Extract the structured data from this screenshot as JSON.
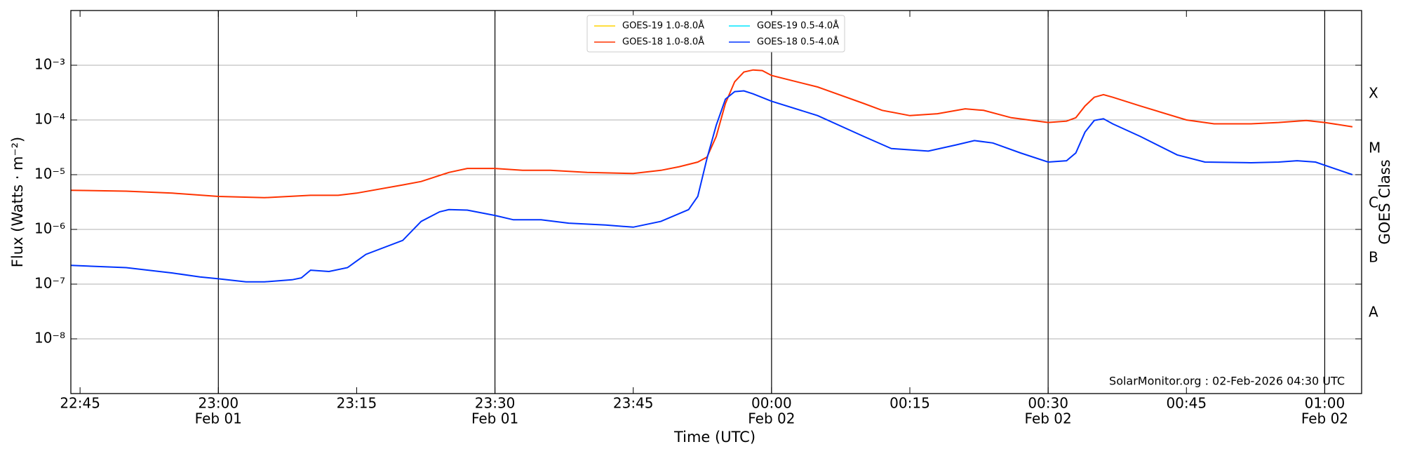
{
  "chart_data": {
    "type": "line",
    "ylabel": "Flux (Watts · m⁻²)",
    "xlabel": "Time (UTC)",
    "y2label": "GOES Class",
    "annotation": "SolarMonitor.org : 02-Feb-2026 04:30 UTC",
    "log_y": true,
    "grid": true,
    "legend": "top-center",
    "ylim": [
      1e-09,
      0.01
    ],
    "yticks": [
      {
        "value": 0.001,
        "label": "10⁻³"
      },
      {
        "value": 0.0001,
        "label": "10⁻⁴"
      },
      {
        "value": 1e-05,
        "label": "10⁻⁵"
      },
      {
        "value": 1e-06,
        "label": "10⁻⁶"
      },
      {
        "value": 1e-07,
        "label": "10⁻⁷"
      },
      {
        "value": 1e-08,
        "label": "10⁻⁸"
      }
    ],
    "y2lim": [
      1e-09,
      0.01
    ],
    "y2ticks": [
      {
        "value": 0.0003,
        "label": "X"
      },
      {
        "value": 3e-05,
        "label": "M"
      },
      {
        "value": 3e-06,
        "label": "C"
      },
      {
        "value": 3e-07,
        "label": "B"
      },
      {
        "value": 3e-08,
        "label": "A"
      }
    ],
    "xlim": [
      "22:44",
      "01:04"
    ],
    "xticks": [
      {
        "value": "22:45",
        "label": "22:45"
      },
      {
        "value": "23:00",
        "label": "23:00",
        "date": "Feb 01"
      },
      {
        "value": "23:15",
        "label": "23:15"
      },
      {
        "value": "23:30",
        "label": "23:30",
        "date": "Feb 01"
      },
      {
        "value": "23:45",
        "label": "23:45"
      },
      {
        "value": "00:00",
        "label": "00:00",
        "date": "Feb 02"
      },
      {
        "value": "00:15",
        "label": "00:15"
      },
      {
        "value": "00:30",
        "label": "00:30",
        "date": "Feb 02"
      },
      {
        "value": "00:45",
        "label": "00:45"
      },
      {
        "value": "01:00",
        "label": "01:00",
        "date": "Feb 02"
      }
    ],
    "vlines": [
      "23:00",
      "23:30",
      "00:00",
      "00:30",
      "01:00"
    ],
    "series": [
      {
        "name": "GOES-19 1.0-8.0Å",
        "color": "#ffd400",
        "x": [],
        "values": []
      },
      {
        "name": "GOES-19 0.5-4.0Å",
        "color": "#00e5ff",
        "x": [],
        "values": []
      },
      {
        "name": "GOES-18 1.0-8.0Å",
        "color": "#ff3300",
        "x": [
          "22:44",
          "22:50",
          "22:55",
          "23:00",
          "23:05",
          "23:10",
          "23:13",
          "23:15",
          "23:20",
          "23:22",
          "23:25",
          "23:27",
          "23:30",
          "23:33",
          "23:36",
          "23:40",
          "23:45",
          "23:48",
          "23:50",
          "23:52",
          "23:53",
          "23:54",
          "23:55",
          "23:56",
          "23:57",
          "23:58",
          "23:59",
          "00:00",
          "00:05",
          "00:10",
          "00:12",
          "00:15",
          "00:18",
          "00:21",
          "00:23",
          "00:26",
          "00:30",
          "00:32",
          "00:33",
          "00:34",
          "00:35",
          "00:36",
          "00:37",
          "00:40",
          "00:45",
          "00:48",
          "00:52",
          "00:55",
          "00:58",
          "01:00",
          "01:03"
        ],
        "values": [
          5.2e-06,
          5e-06,
          4.6e-06,
          4e-06,
          3.8e-06,
          4.2e-06,
          4.2e-06,
          4.6e-06,
          6.5e-06,
          7.5e-06,
          1.1e-05,
          1.3e-05,
          1.3e-05,
          1.2e-05,
          1.2e-05,
          1.1e-05,
          1.05e-05,
          1.2e-05,
          1.4e-05,
          1.7e-05,
          2.1e-05,
          5e-05,
          0.0002,
          0.0005,
          0.00075,
          0.00082,
          0.0008,
          0.00065,
          0.0004,
          0.0002,
          0.00015,
          0.00012,
          0.00013,
          0.00016,
          0.00015,
          0.00011,
          9e-05,
          9.5e-05,
          0.00011,
          0.00018,
          0.00026,
          0.00029,
          0.00026,
          0.00018,
          0.0001,
          8.5e-05,
          8.5e-05,
          9e-05,
          9.8e-05,
          9e-05,
          7.5e-05
        ]
      },
      {
        "name": "GOES-18 0.5-4.0Å",
        "color": "#0033ff",
        "x": [
          "22:44",
          "22:50",
          "22:55",
          "22:58",
          "23:00",
          "23:03",
          "23:05",
          "23:08",
          "23:09",
          "23:10",
          "23:12",
          "23:14",
          "23:16",
          "23:20",
          "23:22",
          "23:24",
          "23:25",
          "23:27",
          "23:30",
          "23:32",
          "23:35",
          "23:38",
          "23:42",
          "23:45",
          "23:48",
          "23:51",
          "23:52",
          "23:53",
          "23:54",
          "23:55",
          "23:56",
          "23:57",
          "23:58",
          "00:00",
          "00:05",
          "00:10",
          "00:13",
          "00:17",
          "00:20",
          "00:22",
          "00:24",
          "00:27",
          "00:30",
          "00:32",
          "00:33",
          "00:34",
          "00:35",
          "00:36",
          "00:37",
          "00:40",
          "00:44",
          "00:47",
          "00:52",
          "00:55",
          "00:57",
          "00:59",
          "01:03"
        ],
        "values": [
          2.2e-07,
          2e-07,
          1.6e-07,
          1.35e-07,
          1.25e-07,
          1.1e-07,
          1.1e-07,
          1.2e-07,
          1.3e-07,
          1.8e-07,
          1.7e-07,
          2e-07,
          3.5e-07,
          6.3e-07,
          1.4e-06,
          2.1e-06,
          2.3e-06,
          2.25e-06,
          1.8e-06,
          1.5e-06,
          1.5e-06,
          1.3e-06,
          1.2e-06,
          1.1e-06,
          1.4e-06,
          2.3e-06,
          4e-06,
          2e-05,
          8e-05,
          0.00024,
          0.00033,
          0.00034,
          0.0003,
          0.00022,
          0.00012,
          5e-05,
          3e-05,
          2.7e-05,
          3.5e-05,
          4.2e-05,
          3.8e-05,
          2.5e-05,
          1.7e-05,
          1.8e-05,
          2.5e-05,
          6e-05,
          9.8e-05,
          0.000105,
          8.5e-05,
          5e-05,
          2.3e-05,
          1.7e-05,
          1.65e-05,
          1.7e-05,
          1.8e-05,
          1.7e-05,
          1e-05
        ]
      }
    ]
  }
}
